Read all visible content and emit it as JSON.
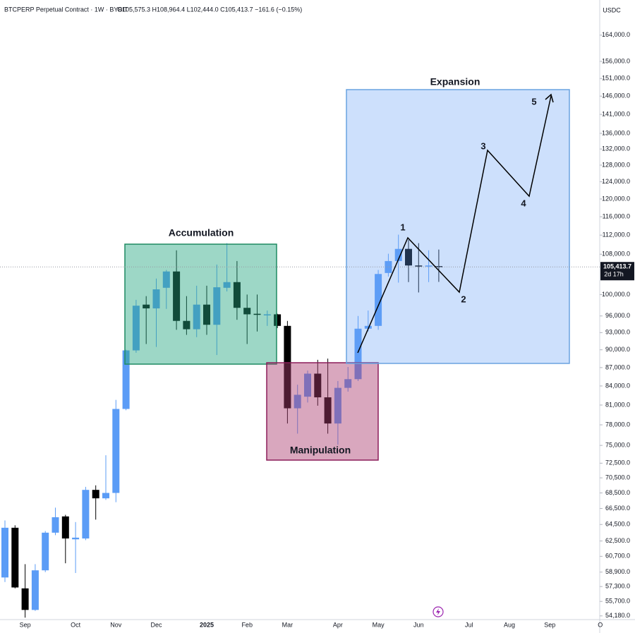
{
  "chart_data": {
    "type": "candlestick",
    "header": {
      "symbol": "BTCPERP Perpetual Contract · 1W · BYBIT",
      "ohlc": "O105,575.3 H108,964.4 L102,444.0 C105,413.7 −161.6 (−0.15%)"
    },
    "currency": "USDC",
    "categories": [
      null,
      null,
      "Sep",
      null,
      null,
      null,
      null,
      "Oct",
      null,
      null,
      null,
      "Nov",
      null,
      null,
      null,
      "Dec",
      null,
      null,
      null,
      null,
      "2025",
      null,
      null,
      null,
      "Feb",
      null,
      null,
      null,
      "Mar",
      null,
      null,
      null,
      null,
      "Apr",
      null,
      null,
      null,
      "May",
      null,
      null,
      null,
      "Jun",
      null,
      null,
      null,
      null,
      "Jul",
      null,
      null,
      null,
      "Aug",
      null,
      null,
      null,
      "Sep",
      null,
      null,
      null,
      null,
      "O"
    ],
    "open": [
      58300,
      64100,
      57100,
      54800,
      59100,
      63500,
      65500,
      62700,
      62800,
      68900,
      67800,
      68500,
      80400,
      89900,
      98100,
      97400,
      101300,
      104500,
      95100,
      93600,
      98100,
      94400,
      101300,
      102400,
      97500,
      96400,
      96200,
      96300,
      94200,
      80500,
      82300,
      86000,
      82200,
      78200,
      83700,
      85100,
      93700,
      94200,
      104200,
      106600,
      109100,
      105700,
      105500,
      105575.3,
      null,
      null,
      null,
      null,
      null,
      null,
      null,
      null,
      null,
      null,
      null,
      null,
      null,
      null,
      null,
      null
    ],
    "high": [
      65000,
      64400,
      59800,
      59800,
      63700,
      66600,
      65700,
      64800,
      69300,
      69500,
      73600,
      81800,
      90000,
      99000,
      99700,
      103100,
      104800,
      108800,
      99700,
      101700,
      101700,
      105900,
      110300,
      106600,
      100000,
      100000,
      97000,
      96400,
      95100,
      84200,
      86500,
      88300,
      88500,
      84800,
      87100,
      96000,
      97000,
      104800,
      108100,
      112100,
      111000,
      110300,
      108800,
      108964.4,
      null,
      null,
      null,
      null,
      null,
      null,
      null,
      null,
      null,
      null,
      null,
      null,
      null,
      null,
      null,
      null
    ],
    "low": [
      57800,
      57100,
      54000,
      54700,
      58900,
      63200,
      59900,
      58800,
      62600,
      65100,
      67600,
      67300,
      80200,
      89500,
      91000,
      90500,
      97300,
      93500,
      92600,
      92200,
      92600,
      89100,
      100600,
      95300,
      91000,
      93200,
      94200,
      93800,
      78200,
      76700,
      81400,
      80900,
      76700,
      75100,
      83100,
      84800,
      93200,
      93500,
      103500,
      102300,
      102400,
      100400,
      102400,
      102444.0,
      null,
      null,
      null,
      null,
      null,
      null,
      null,
      null,
      null,
      null,
      null,
      null,
      null,
      null,
      null,
      null
    ],
    "close": [
      64100,
      57200,
      54800,
      59100,
      63500,
      65400,
      62800,
      62900,
      68900,
      67800,
      68500,
      80400,
      89900,
      97900,
      97400,
      101000,
      104500,
      95100,
      93600,
      98100,
      94400,
      101400,
      102400,
      97500,
      96300,
      96200,
      96300,
      94200,
      80500,
      82600,
      86000,
      82200,
      78200,
      83700,
      85100,
      93700,
      94200,
      104000,
      106600,
      109100,
      105700,
      105600,
      105700,
      105413.7,
      null,
      null,
      null,
      null,
      null,
      null,
      null,
      null,
      null,
      null,
      null,
      null,
      null,
      null,
      null,
      null
    ],
    "up_color": "#5b9cf6",
    "down_color": "#000000",
    "log_scale": true,
    "grid": false,
    "ylim": [
      53800,
      173500
    ],
    "yticks": [
      {
        "value": 164000,
        "label": "164,000.0"
      },
      {
        "value": 156000,
        "label": "156,000.0"
      },
      {
        "value": 151000,
        "label": "151,000.0"
      },
      {
        "value": 146000,
        "label": "146,000.0"
      },
      {
        "value": 141000,
        "label": "141,000.0"
      },
      {
        "value": 136000,
        "label": "136,000.0"
      },
      {
        "value": 132000,
        "label": "132,000.0"
      },
      {
        "value": 128000,
        "label": "128,000.0"
      },
      {
        "value": 124000,
        "label": "124,000.0"
      },
      {
        "value": 120000,
        "label": "120,000.0"
      },
      {
        "value": 116000,
        "label": "116,000.0"
      },
      {
        "value": 112000,
        "label": "112,000.0"
      },
      {
        "value": 108000,
        "label": "108,000.0"
      },
      {
        "value": 100000,
        "label": "100,000.0"
      },
      {
        "value": 96000,
        "label": "96,000.0"
      },
      {
        "value": 93000,
        "label": "93,000.0"
      },
      {
        "value": 90000,
        "label": "90,000.0"
      },
      {
        "value": 87000,
        "label": "87,000.0"
      },
      {
        "value": 84000,
        "label": "84,000.0"
      },
      {
        "value": 81000,
        "label": "81,000.0"
      },
      {
        "value": 78000,
        "label": "78,000.0"
      },
      {
        "value": 75000,
        "label": "75,000.0"
      },
      {
        "value": 72500,
        "label": "72,500.0"
      },
      {
        "value": 70500,
        "label": "70,500.0"
      },
      {
        "value": 68500,
        "label": "68,500.0"
      },
      {
        "value": 66500,
        "label": "66,500.0"
      },
      {
        "value": 64500,
        "label": "64,500.0"
      },
      {
        "value": 62500,
        "label": "62,500.0"
      },
      {
        "value": 60700,
        "label": "60,700.0"
      },
      {
        "value": 58900,
        "label": "58,900.0"
      },
      {
        "value": 57300,
        "label": "57,300.0"
      },
      {
        "value": 55700,
        "label": "55,700.0"
      },
      {
        "value": 54180,
        "label": "54,180.0"
      }
    ],
    "last_price": 105413.7,
    "last_price_label": "105,413.7",
    "countdown": "2d 17h",
    "annotations": {
      "boxes": [
        "Accumulation",
        "Manipulation",
        "Expansion"
      ],
      "waves": [
        "1",
        "2",
        "3",
        "4",
        "5"
      ]
    }
  }
}
